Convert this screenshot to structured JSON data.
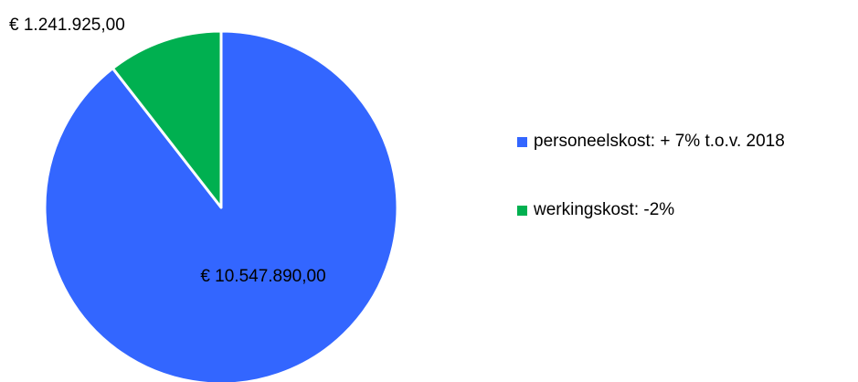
{
  "chart_data": {
    "type": "pie",
    "categories": [
      "personeelskost: + 7% t.o.v. 2018",
      "werkingskost: -2%"
    ],
    "values": [
      10547890.0,
      1241925.0
    ],
    "data_labels": [
      "€ 10.547.890,00",
      "€ 1.241.925,00"
    ],
    "colors": [
      "#3366ff",
      "#00b050"
    ],
    "legend_position": "right",
    "start_angle": "top, clockwise",
    "title": ""
  }
}
